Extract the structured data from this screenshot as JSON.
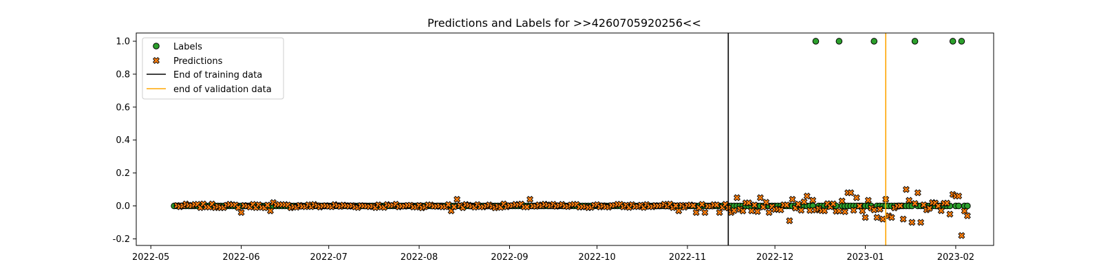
{
  "chart_data": {
    "type": "scatter",
    "title": "Predictions and Labels for >>4260705920256<<",
    "xlabel": "",
    "ylabel": "",
    "x_axis": {
      "type": "date",
      "range": [
        "2022-04-26",
        "2023-02-14"
      ],
      "ticks": [
        "2022-05",
        "2022-06",
        "2022-07",
        "2022-08",
        "2022-09",
        "2022-10",
        "2022-11",
        "2022-12",
        "2023-01",
        "2023-02"
      ],
      "tick_dates": [
        "2022-05-01",
        "2022-06-01",
        "2022-07-01",
        "2022-08-01",
        "2022-09-01",
        "2022-10-01",
        "2022-11-01",
        "2022-12-01",
        "2023-01-01",
        "2023-02-01"
      ]
    },
    "y_axis": {
      "range": [
        -0.24,
        1.05
      ],
      "ticks": [
        "-0.2",
        "0.0",
        "0.2",
        "0.4",
        "0.6",
        "0.8",
        "1.0"
      ],
      "tick_values": [
        -0.2,
        0.0,
        0.2,
        0.4,
        0.6,
        0.8,
        1.0
      ]
    },
    "grid": false,
    "legend": {
      "placement": "top-left",
      "entries": [
        "Labels",
        "Predictions",
        "End of training data",
        "end of validation data"
      ]
    },
    "colors": {
      "labels_fill": "#2ca02c",
      "predictions_fill": "#ff7f0e",
      "marker_edge": "#000000",
      "training_line": "#000000",
      "validation_line": "#ffa500"
    },
    "vertical_lines": [
      {
        "name": "End of training data",
        "x": "2022-11-15",
        "color": "#000000"
      },
      {
        "name": "end of validation data",
        "x": "2023-01-08",
        "color": "#ffa500"
      }
    ],
    "series": [
      {
        "name": "Labels",
        "marker": "circle",
        "range": [
          "2022-05-09",
          "2023-02-05"
        ],
        "baseline_value": 0.0,
        "values_at_one": [
          "2022-12-15",
          "2022-12-23",
          "2023-01-04",
          "2023-01-18",
          "2023-01-31",
          "2023-02-03"
        ]
      },
      {
        "name": "Predictions",
        "marker": "x",
        "range": [
          "2022-05-10",
          "2023-02-05"
        ],
        "notable_points": [
          {
            "x": "2022-06-01",
            "y": -0.04
          },
          {
            "x": "2022-06-11",
            "y": -0.03
          },
          {
            "x": "2022-06-12",
            "y": 0.02
          },
          {
            "x": "2022-08-12",
            "y": -0.03
          },
          {
            "x": "2022-08-14",
            "y": 0.04
          },
          {
            "x": "2022-09-08",
            "y": 0.04
          },
          {
            "x": "2022-10-29",
            "y": -0.03
          },
          {
            "x": "2022-11-04",
            "y": -0.04
          },
          {
            "x": "2022-11-07",
            "y": -0.04
          },
          {
            "x": "2022-11-12",
            "y": -0.04
          },
          {
            "x": "2022-11-16",
            "y": -0.04
          },
          {
            "x": "2022-11-18",
            "y": 0.05
          },
          {
            "x": "2022-11-23",
            "y": -0.03
          },
          {
            "x": "2022-11-26",
            "y": 0.05
          },
          {
            "x": "2022-11-29",
            "y": -0.04
          },
          {
            "x": "2022-12-06",
            "y": -0.09
          },
          {
            "x": "2022-12-07",
            "y": 0.04
          },
          {
            "x": "2022-12-12",
            "y": 0.06
          },
          {
            "x": "2022-12-18",
            "y": -0.03
          },
          {
            "x": "2022-12-24",
            "y": 0.03
          },
          {
            "x": "2022-12-26",
            "y": 0.08
          },
          {
            "x": "2022-12-27",
            "y": 0.08
          },
          {
            "x": "2022-12-29",
            "y": 0.05
          },
          {
            "x": "2023-01-01",
            "y": -0.07
          },
          {
            "x": "2023-01-05",
            "y": -0.07
          },
          {
            "x": "2023-01-07",
            "y": -0.08
          },
          {
            "x": "2023-01-08",
            "y": 0.04
          },
          {
            "x": "2023-01-09",
            "y": -0.06
          },
          {
            "x": "2023-01-10",
            "y": -0.07
          },
          {
            "x": "2023-01-14",
            "y": -0.08
          },
          {
            "x": "2023-01-15",
            "y": 0.1
          },
          {
            "x": "2023-01-17",
            "y": -0.1
          },
          {
            "x": "2023-01-19",
            "y": 0.08
          },
          {
            "x": "2023-01-20",
            "y": -0.1
          },
          {
            "x": "2023-01-30",
            "y": -0.05
          },
          {
            "x": "2023-01-31",
            "y": 0.07
          },
          {
            "x": "2023-02-01",
            "y": 0.06
          },
          {
            "x": "2023-02-02",
            "y": 0.06
          },
          {
            "x": "2023-02-03",
            "y": -0.18
          },
          {
            "x": "2023-02-05",
            "y": -0.06
          }
        ]
      }
    ]
  }
}
